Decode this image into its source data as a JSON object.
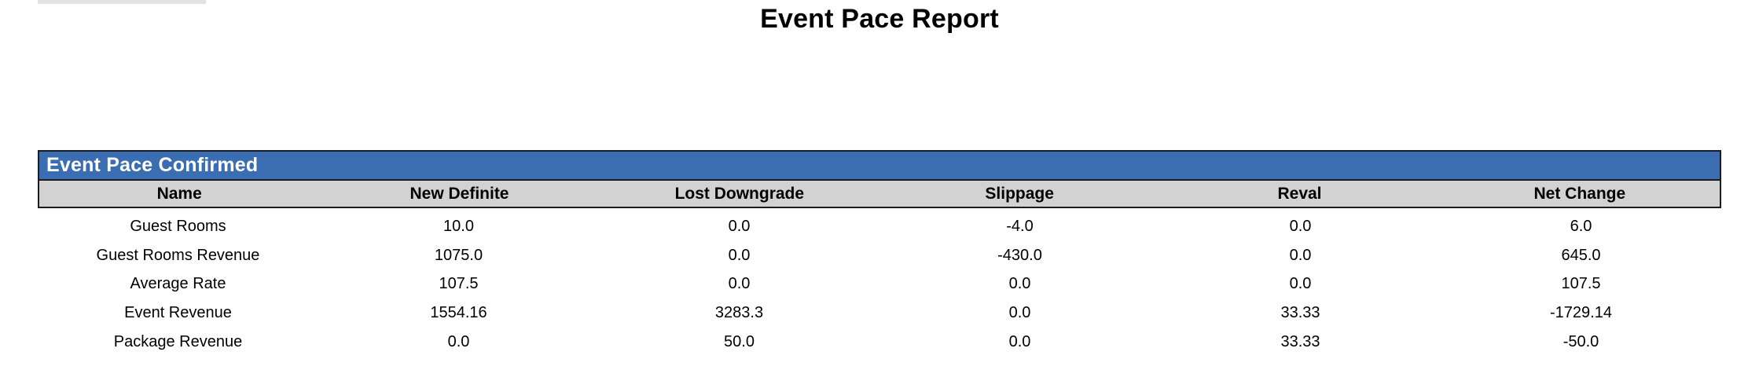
{
  "page": {
    "title": "Event Pace Report"
  },
  "table": {
    "title": "Event Pace Confirmed",
    "columns": [
      "Name",
      "New Definite",
      "Lost Downgrade",
      "Slippage",
      "Reval",
      "Net Change"
    ],
    "rows": [
      [
        "Guest Rooms",
        "10.0",
        "0.0",
        "-4.0",
        "0.0",
        "6.0"
      ],
      [
        "Guest Rooms Revenue",
        "1075.0",
        "0.0",
        "-430.0",
        "0.0",
        "645.0"
      ],
      [
        "Average Rate",
        "107.5",
        "0.0",
        "0.0",
        "0.0",
        "107.5"
      ],
      [
        "Event Revenue",
        "1554.16",
        "3283.3",
        "0.0",
        "33.33",
        "-1729.14"
      ],
      [
        "Package Revenue",
        "0.0",
        "50.0",
        "0.0",
        "33.33",
        "-50.0"
      ]
    ]
  },
  "colors": {
    "band_blue": "#3A6DB2",
    "header_gray": "#D2D2D2",
    "border_dark": "#1B1B22",
    "strip_gray": "#E2E2E2"
  }
}
